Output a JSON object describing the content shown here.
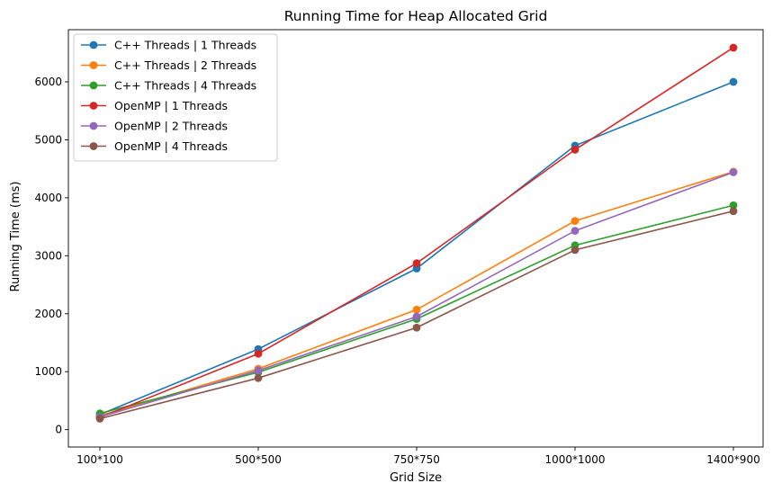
{
  "chart_data": {
    "type": "line",
    "title": "Running Time for Heap Allocated Grid",
    "xlabel": "Grid Size",
    "ylabel": "Running Time (ms)",
    "categories": [
      "100*100",
      "500*500",
      "750*750",
      "1000*1000",
      "1400*900"
    ],
    "yticks": [
      0,
      1000,
      2000,
      3000,
      4000,
      5000,
      6000
    ],
    "ylim": [
      -300,
      6900
    ],
    "grid": false,
    "legend_position": "top-left",
    "series": [
      {
        "name": "C++ Threads | 1 Threads",
        "color": "#1f77b4",
        "values": [
          260,
          1390,
          2780,
          4900,
          6000
        ]
      },
      {
        "name": "C++ Threads | 2 Threads",
        "color": "#ff7f0e",
        "values": [
          240,
          1050,
          2070,
          3600,
          4450
        ]
      },
      {
        "name": "C++ Threads | 4 Threads",
        "color": "#2ca02c",
        "values": [
          280,
          990,
          1910,
          3180,
          3870
        ]
      },
      {
        "name": "OpenMP | 1 Threads",
        "color": "#d62728",
        "values": [
          210,
          1310,
          2870,
          4830,
          6590
        ]
      },
      {
        "name": "OpenMP | 2 Threads",
        "color": "#9467bd",
        "values": [
          220,
          1020,
          1950,
          3430,
          4440
        ]
      },
      {
        "name": "OpenMP | 4 Threads",
        "color": "#8c564b",
        "values": [
          190,
          890,
          1760,
          3100,
          3770
        ]
      }
    ]
  }
}
